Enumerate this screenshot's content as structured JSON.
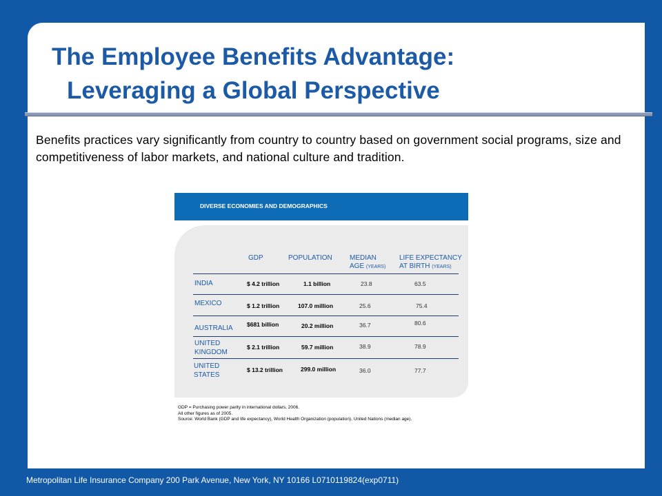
{
  "title": {
    "line1": "The Employee Benefits Advantage:",
    "line2": "Leveraging a Global Perspective"
  },
  "intro": "Benefits practices vary significantly from country to country based on government social programs, size and competitiveness of labor markets, and national culture and tradition.",
  "table": {
    "banner": "DIVERSE ECONOMIES AND DEMOGRAPHICS",
    "headers": {
      "gdp": "GDP",
      "population": "POPULATION",
      "median_line1": "MEDIAN",
      "median_line2": "AGE",
      "median_unit": "(YEARS)",
      "life_line1": "LIFE EXPECTANCY",
      "life_line2": "AT BIRTH",
      "life_unit": "(YEARS)"
    },
    "rows": [
      {
        "country_line1": "INDIA",
        "country_line2": "",
        "gdp": "$ 4.2 trillion",
        "population": "1.1 billion",
        "median_age": "23.8",
        "life_expectancy": "63.5"
      },
      {
        "country_line1": "MEXICO",
        "country_line2": "",
        "gdp": "$ 1.2 trillion",
        "population": "107.0 million",
        "median_age": "25.6",
        "life_expectancy": "75.4"
      },
      {
        "country_line1": "AUSTRALIA",
        "country_line2": "",
        "gdp": "$681 billion",
        "population": "20.2 million",
        "median_age": "36.7",
        "life_expectancy": "80.6"
      },
      {
        "country_line1": "UNITED",
        "country_line2": "KINGDOM",
        "gdp": "$ 2.1 trillion",
        "population": "59.7 million",
        "median_age": "38.9",
        "life_expectancy": "78.9"
      },
      {
        "country_line1": "UNITED",
        "country_line2": "STATES",
        "gdp": "$ 13.2 trillion",
        "population": "299.0 million",
        "median_age": "36.0",
        "life_expectancy": "77.7"
      }
    ],
    "notes": [
      "GDP = Purchasing power parity in international dollars, 2006.",
      "All other figures as of 2005.",
      "Source: World Bank (GDP and life expectancy), World Health Organization (population), United Nations (median age)."
    ]
  },
  "footer": "Metropolitan Life Insurance Company 200 Park Avenue, New York, NY 10166    L0710119824(exp0711)",
  "colors": {
    "background": "#1158a6",
    "title": "#1c5aa6",
    "banner": "#0e6bb5",
    "panel": "#ebebeb"
  }
}
